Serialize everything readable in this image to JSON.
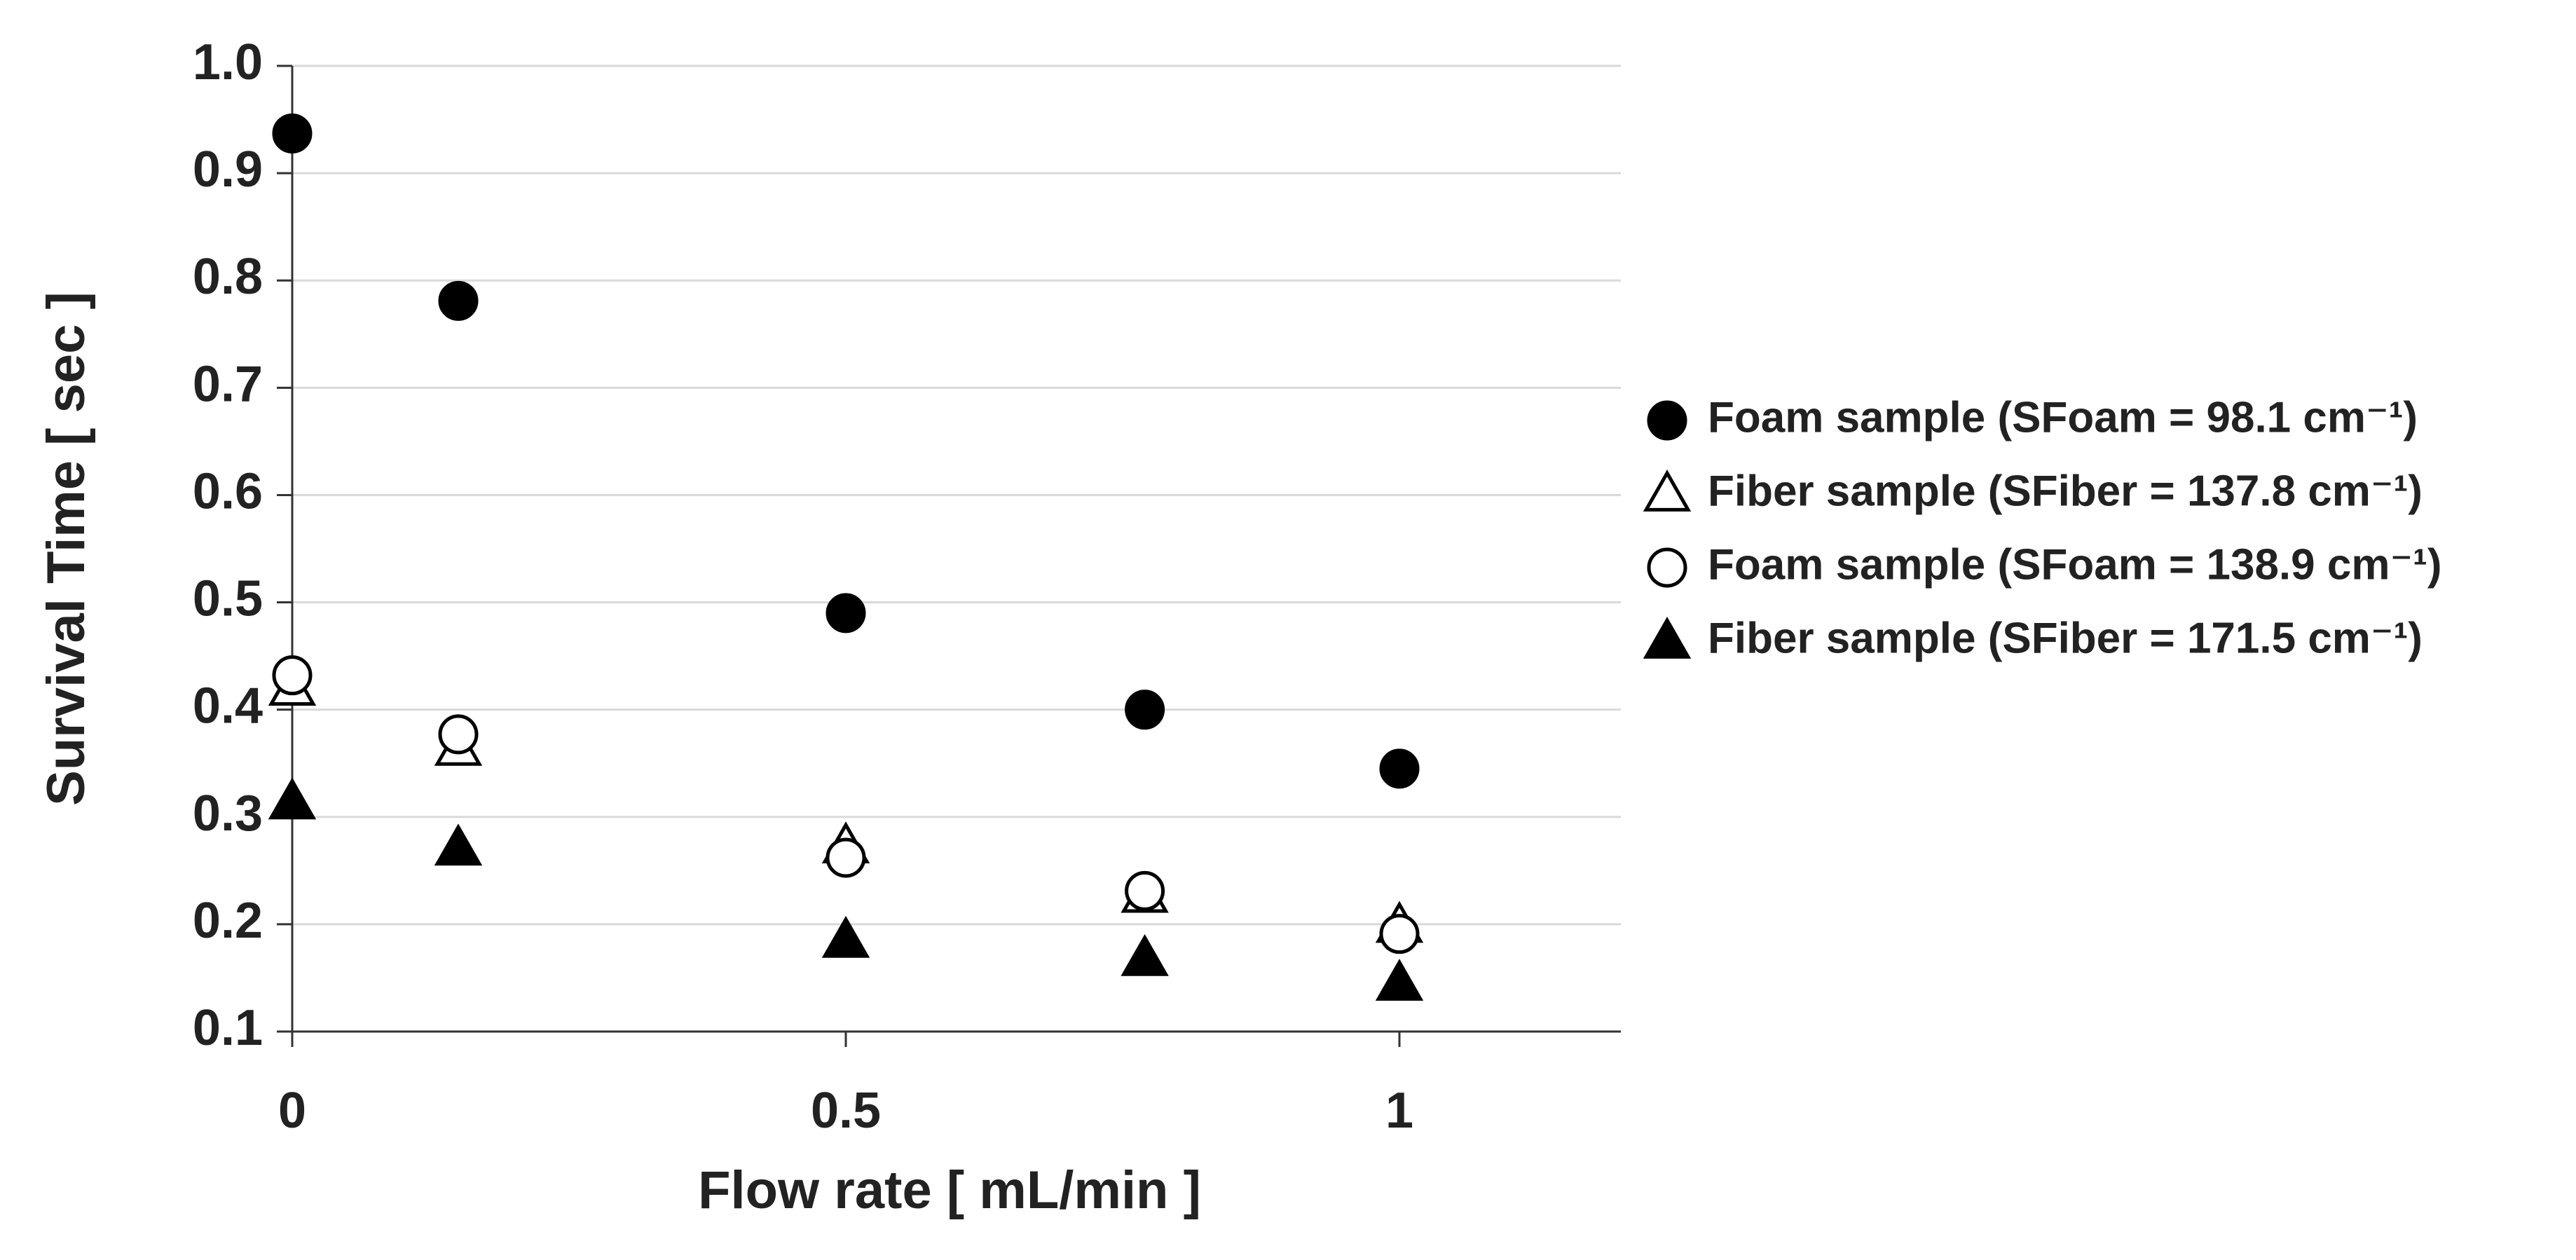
{
  "chart_data": {
    "type": "scatter",
    "xlabel": "Flow rate [ mL/min ]",
    "ylabel": "Survival Time [ sec ]",
    "xlim": [
      0,
      1.2
    ],
    "ylim": [
      0.1,
      1.0
    ],
    "xticks": [
      0,
      0.5,
      1
    ],
    "yticks": [
      0.1,
      0.2,
      0.3,
      0.4,
      0.5,
      0.6,
      0.7,
      0.8,
      0.9,
      {
        "value": 1.0,
        "label": "1.0"
      }
    ],
    "grid": true,
    "legend": "right",
    "series": [
      {
        "name": "Foam sample (SFoam = 98.1 cm⁻¹)",
        "marker": "circle",
        "color": "#000000",
        "fill": "#000000",
        "x": [
          0,
          0.15,
          0.5,
          0.77,
          1
        ],
        "values": [
          0.937,
          0.781,
          0.49,
          0.4,
          0.345
        ]
      },
      {
        "name": "Fiber sample (SFiber = 137.8 cm⁻¹)",
        "marker": "triangle",
        "color": "#000000",
        "fill": "#ffffff",
        "x": [
          0,
          0.15,
          0.5,
          0.77,
          1
        ],
        "values": [
          0.42,
          0.364,
          0.273,
          0.227,
          0.199
        ]
      },
      {
        "name": "Foam sample (SFoam = 138.9 cm⁻¹)",
        "marker": "circle",
        "color": "#000000",
        "fill": "#ffffff",
        "x": [
          0,
          0.15,
          0.5,
          0.77,
          1
        ],
        "values": [
          0.432,
          0.377,
          0.262,
          0.231,
          0.191
        ]
      },
      {
        "name": "Fiber sample (SFiber = 171.5 cm⁻¹)",
        "marker": "triangle",
        "color": "#000000",
        "fill": "#000000",
        "x": [
          0,
          0.15,
          0.5,
          0.77,
          1
        ],
        "values": [
          0.314,
          0.271,
          0.185,
          0.168,
          0.145
        ]
      }
    ]
  }
}
